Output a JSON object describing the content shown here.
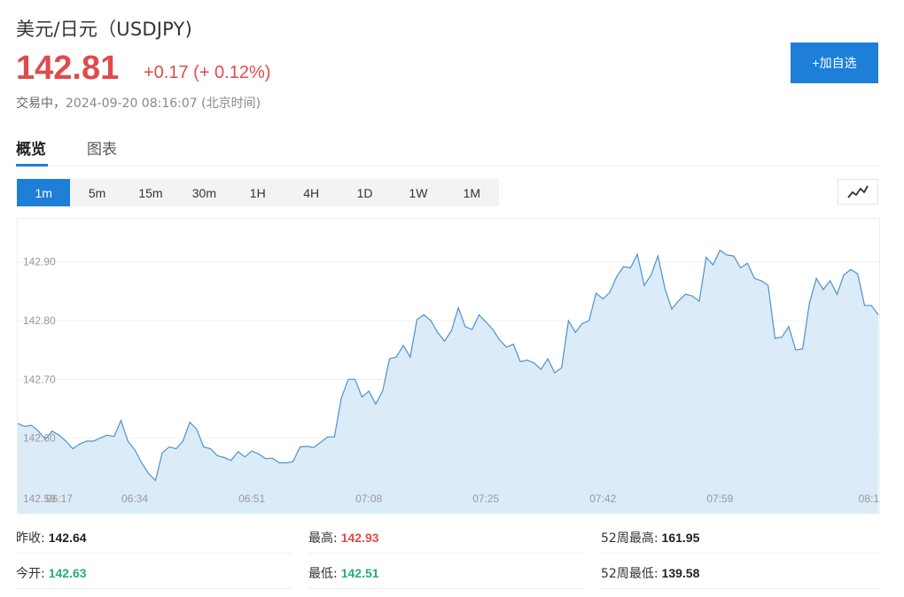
{
  "header": {
    "title": "美元/日元（USDJPY)",
    "price": "142.81",
    "change": "+0.17 (+ 0.12%)",
    "status": "交易中，",
    "timestamp": "2024-09-20 08:16:07 (北京时间)",
    "add_button": "+加自选"
  },
  "tabs": [
    {
      "label": "概览",
      "active": true
    },
    {
      "label": "图表",
      "active": false
    }
  ],
  "periods": [
    {
      "label": "1m",
      "active": true
    },
    {
      "label": "5m",
      "active": false
    },
    {
      "label": "15m",
      "active": false
    },
    {
      "label": "30m",
      "active": false
    },
    {
      "label": "1H",
      "active": false
    },
    {
      "label": "4H",
      "active": false
    },
    {
      "label": "1D",
      "active": false
    },
    {
      "label": "1W",
      "active": false
    },
    {
      "label": "1M",
      "active": false
    }
  ],
  "chart_type_icon": "line-chart-icon",
  "colors": {
    "up": "#e04b4b",
    "down": "#2baa7b",
    "accent": "#1e7fd8",
    "line": "#4a93d0",
    "fill": "#dcebf8"
  },
  "chart_data": {
    "type": "area",
    "title": "",
    "xlabel": "",
    "ylabel": "",
    "ylim": [
      142.515,
      142.975
    ],
    "yticks": [
      "142.90",
      "142.80",
      "142.70",
      "142.60"
    ],
    "ytick_values": [
      142.9,
      142.8,
      142.7,
      142.6
    ],
    "yticks_extra": [
      "142.50"
    ],
    "xticks": [
      "06:17",
      "06:34",
      "06:51",
      "07:08",
      "07:25",
      "07:42",
      "07:59",
      "08:1"
    ],
    "xtick_index": [
      0,
      17,
      34,
      51,
      68,
      85,
      102,
      119
    ],
    "grid": true,
    "values": [
      142.625,
      142.62,
      142.622,
      142.612,
      142.598,
      142.612,
      142.605,
      142.595,
      142.582,
      142.59,
      142.595,
      142.595,
      142.6,
      142.605,
      142.603,
      142.63,
      142.595,
      142.58,
      142.558,
      142.54,
      142.528,
      142.575,
      142.585,
      142.582,
      142.595,
      142.627,
      142.615,
      142.585,
      142.582,
      142.57,
      142.567,
      142.562,
      142.577,
      142.568,
      142.578,
      142.573,
      142.565,
      142.566,
      142.558,
      142.558,
      142.56,
      142.585,
      142.586,
      142.584,
      142.593,
      142.602,
      142.602,
      142.668,
      142.7,
      142.7,
      142.67,
      142.68,
      142.658,
      142.68,
      142.735,
      142.738,
      142.758,
      142.738,
      142.802,
      142.81,
      142.8,
      142.78,
      142.765,
      142.783,
      142.822,
      142.79,
      142.785,
      142.81,
      142.798,
      142.785,
      142.767,
      142.755,
      142.76,
      142.73,
      142.733,
      142.728,
      142.717,
      142.735,
      142.711,
      142.72,
      142.8,
      142.78,
      142.795,
      142.8,
      142.847,
      142.837,
      142.848,
      142.875,
      142.892,
      142.89,
      142.913,
      142.86,
      142.878,
      142.91,
      142.855,
      142.82,
      142.834,
      142.845,
      142.842,
      142.833,
      142.908,
      142.895,
      142.92,
      142.912,
      142.91,
      142.89,
      142.898,
      142.872,
      142.868,
      142.86,
      142.77,
      142.772,
      142.79,
      142.75,
      142.752,
      142.83,
      142.872,
      142.853,
      142.868,
      142.845,
      142.878,
      142.887,
      142.88,
      142.826,
      142.826,
      142.81
    ]
  },
  "stats": [
    {
      "label": "昨收:",
      "value": "142.64",
      "tone": "neutral"
    },
    {
      "label": "最高:",
      "value": "142.93",
      "tone": "up"
    },
    {
      "label": "52周最高:",
      "value": "161.95",
      "tone": "neutral"
    },
    {
      "label": "今开:",
      "value": "142.63",
      "tone": "down"
    },
    {
      "label": "最低:",
      "value": "142.51",
      "tone": "down"
    },
    {
      "label": "52周最低:",
      "value": "139.58",
      "tone": "neutral"
    }
  ]
}
